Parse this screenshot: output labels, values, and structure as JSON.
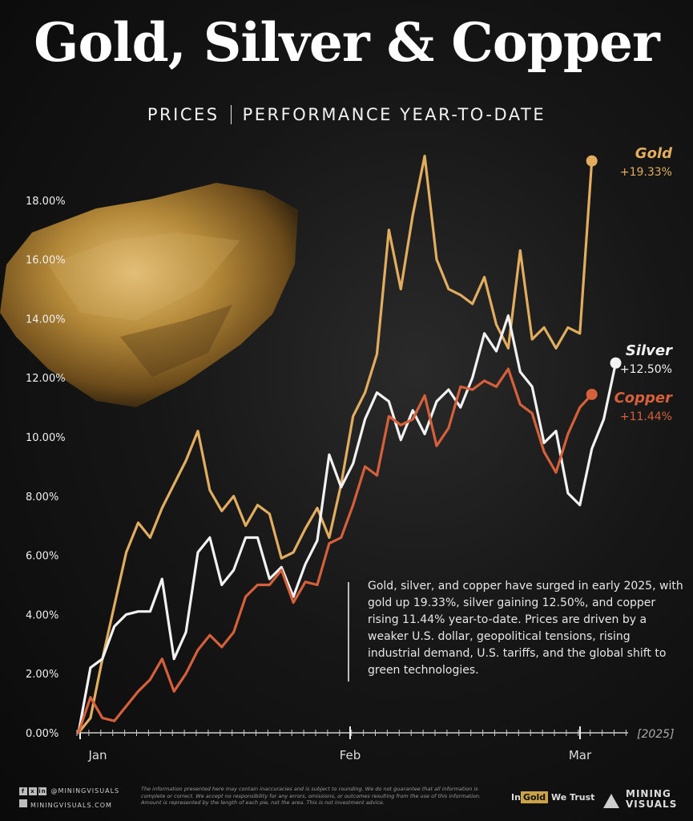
{
  "title": "Gold, Silver & Copper",
  "subtitle": {
    "left": "PRICES",
    "right": "PERFORMANCE YEAR-TO-DATE"
  },
  "note": "Gold, silver, and copper have surged in early 2025, with gold up 19.33%, silver gaining 12.50%, and copper rising 11.44% year-to-date. Prices are driven by a weaker U.S. dollar, geopolitical tensions, rising industrial demand, U.S. tariffs, and the global shift to green technologies.",
  "footer": {
    "social_handle": "@MININGVISUALS",
    "website": "MININGVISUALS.COM",
    "disclaimer": "The information presented here may contain inaccuracies and is subject to rounding. We do not guarantee that all information is complete or correct. We accept no responsibility for any errors, omissions, or outcomes resulting from the use of this information. Amount is represented by the length of each pie, not the area. This is not investment advice.",
    "partner_a": "In",
    "partner_b": "Gold",
    "partner_c": "We Trust",
    "brand": "MINING VISUALS"
  },
  "colors": {
    "gold": "#e2ad5e",
    "silver": "#f2f2f2",
    "copper": "#d5603a",
    "axis": "#cccccc"
  },
  "chart_data": {
    "type": "line",
    "title": "",
    "xlabel": "",
    "ylabel": "",
    "year_label": "[2025]",
    "x_tick_labels": [
      "Jan",
      "Feb",
      "Mar"
    ],
    "y_tick_labels": [
      "0.00%",
      "2.00%",
      "4.00%",
      "6.00%",
      "8.00%",
      "10.00%",
      "12.00%",
      "14.00%",
      "16.00%",
      "18.00%"
    ],
    "ylim": [
      0,
      19.5
    ],
    "grid": false,
    "legend": "end-of-line labels",
    "x_days": [
      0,
      1,
      2,
      3,
      4,
      5,
      6,
      7,
      8,
      9,
      10,
      11,
      12,
      13,
      14,
      15,
      16,
      17,
      18,
      19,
      20,
      21,
      22,
      23,
      24,
      25,
      26,
      27,
      28,
      29,
      30,
      31,
      32,
      33,
      34,
      35,
      36,
      37,
      38,
      39,
      40,
      41,
      42,
      43,
      44,
      45,
      46,
      47,
      48,
      49,
      50,
      51,
      52,
      53,
      54,
      55
    ],
    "series": [
      {
        "name": "Gold",
        "end_label": "+19.33%",
        "values": [
          0,
          0.5,
          2.5,
          4.3,
          6.1,
          7.1,
          6.6,
          7.6,
          8.4,
          9.2,
          10.2,
          8.2,
          7.5,
          8,
          7,
          7.7,
          7.4,
          5.9,
          6.1,
          6.9,
          7.6,
          6.6,
          8.4,
          10.7,
          11.5,
          12.8,
          17,
          15,
          17.5,
          19.5,
          16,
          15,
          14.8,
          14.5,
          15.4,
          13.8,
          13,
          16.3,
          13.3,
          13.7,
          13,
          13.7,
          13.5,
          19.33
        ],
        "x_index": [
          0,
          1,
          2,
          3,
          4,
          5,
          6,
          7,
          8,
          9,
          10,
          11,
          12,
          13,
          14,
          15,
          16,
          17,
          18,
          19,
          20,
          21,
          22,
          23,
          24,
          25,
          26,
          27,
          28,
          29,
          30,
          31,
          32,
          33,
          34,
          35,
          36,
          37,
          38,
          39,
          40,
          41,
          42,
          43
        ]
      },
      {
        "name": "Silver",
        "end_label": "+12.50%",
        "values": [
          0,
          2.2,
          2.5,
          3.6,
          4,
          4.1,
          4.1,
          5.2,
          2.5,
          3.4,
          6.1,
          6.6,
          5,
          5.5,
          6.6,
          6.6,
          5.2,
          5.6,
          4.6,
          5.7,
          6.5,
          9.4,
          8.3,
          9.1,
          10.6,
          11.5,
          11.2,
          9.9,
          10.9,
          10.1,
          11.2,
          11.6,
          11,
          12,
          13.5,
          12.9,
          14.1,
          12.2,
          11.7,
          9.8,
          10.2,
          8.1,
          7.7,
          9.6,
          10.6,
          12.5
        ],
        "x_index": [
          0,
          1,
          2,
          3,
          4,
          5,
          6,
          7,
          8,
          9,
          10,
          11,
          12,
          13,
          14,
          15,
          16,
          17,
          18,
          19,
          20,
          21,
          22,
          23,
          24,
          25,
          26,
          27,
          28,
          29,
          30,
          31,
          32,
          33,
          34,
          35,
          36,
          37,
          38,
          39,
          40,
          41,
          42,
          43,
          44,
          45
        ]
      },
      {
        "name": "Copper",
        "end_label": "+11.44%",
        "values": [
          0,
          1.2,
          0.5,
          0.4,
          0.9,
          1.4,
          1.8,
          2.5,
          1.4,
          2,
          2.8,
          3.3,
          2.9,
          3.4,
          4.6,
          5,
          5,
          5.5,
          4.4,
          5.1,
          5,
          6.4,
          6.6,
          7.7,
          9,
          8.7,
          10.7,
          10.4,
          10.6,
          11.4,
          9.7,
          10.3,
          11.7,
          11.6,
          11.9,
          11.7,
          12.3,
          11.1,
          10.8,
          9.5,
          8.8,
          10.1,
          11,
          11.44
        ],
        "x_index": [
          0,
          1,
          2,
          3,
          4,
          5,
          6,
          7,
          8,
          9,
          10,
          11,
          12,
          13,
          14,
          15,
          16,
          17,
          18,
          19,
          20,
          21,
          22,
          23,
          24,
          25,
          26,
          27,
          28,
          29,
          30,
          31,
          32,
          33,
          34,
          35,
          36,
          37,
          38,
          39,
          40,
          41,
          42,
          43
        ]
      }
    ]
  }
}
